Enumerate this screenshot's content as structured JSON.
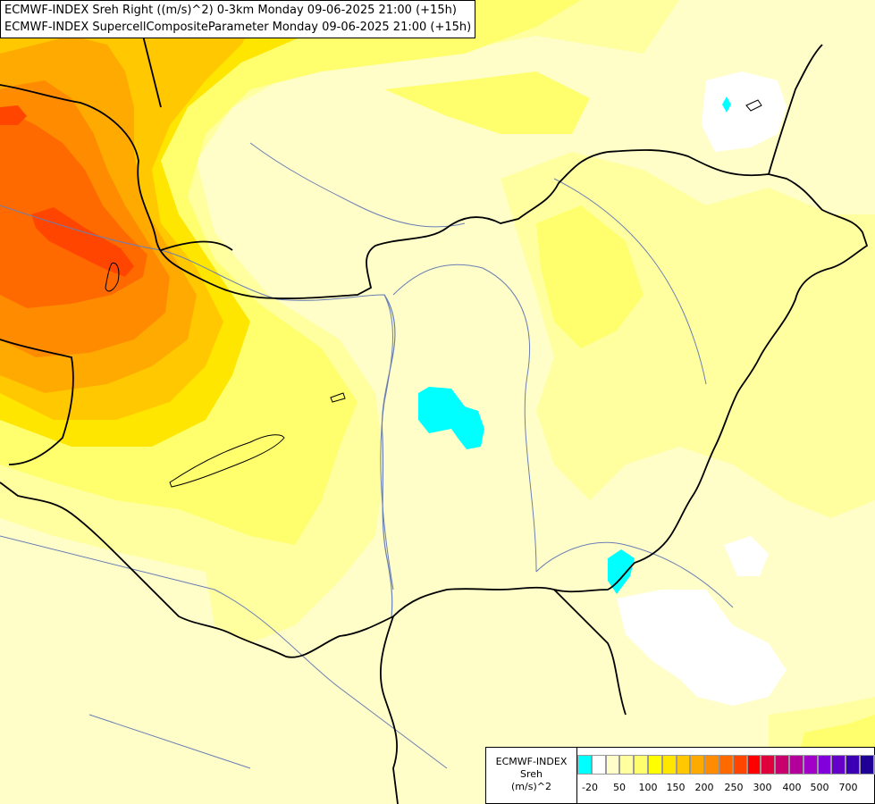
{
  "title": {
    "line1": "ECMWF-INDEX Sreh Right ((m/s)^2) 0-3km Monday 09-06-2025 21:00 (+15h)",
    "line2": "ECMWF-INDEX SupercellCompositeParameter Monday 09-06-2025 21:00 (+15h)"
  },
  "legend": {
    "source": "ECMWF-INDEX",
    "variable": "Sreh",
    "unit": "(m/s)^2",
    "colors": [
      "#00ffff",
      "#ffffff",
      "#fffec8",
      "#ffffa0",
      "#ffff6e",
      "#ffff00",
      "#ffe600",
      "#ffc800",
      "#ffaa00",
      "#ff8c00",
      "#ff6a00",
      "#ff4500",
      "#ff0000",
      "#e0003c",
      "#c8006e",
      "#b4009b",
      "#a000c8",
      "#8200dc",
      "#6400c8",
      "#3c00b4",
      "#1e0096",
      "#000078"
    ],
    "ticks": [
      "-20",
      "50",
      "100",
      "150",
      "200",
      "250",
      "300",
      "400",
      "500",
      "700"
    ]
  },
  "map": {
    "fields": {
      "background": "#fffec8",
      "light_yellow": "#ffffa0",
      "yellow": "#ffff6e",
      "gold": "#ffe600",
      "amber": "#ffc800",
      "orange": "#ffaa00",
      "dark_orange": "#ff8c00",
      "red_orange": "#ff6a00",
      "red": "#ff4500",
      "negative": "#00ffff",
      "white": "#ffffff"
    }
  }
}
